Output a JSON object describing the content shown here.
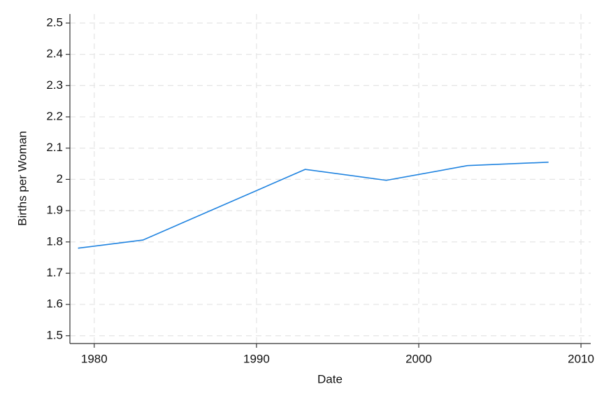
{
  "chart_data": {
    "type": "line",
    "x_label": "Date",
    "y_label": "Births per Woman",
    "x": [
      1979,
      1983,
      1993,
      1998,
      2003,
      2008
    ],
    "series": [
      {
        "name": "Births per Woman",
        "color": "#1f83e0",
        "values": [
          1.78,
          1.806,
          2.032,
          1.997,
          2.044,
          2.055
        ]
      }
    ],
    "xlim": [
      1978.5,
      2010.6
    ],
    "ylim": [
      1.475,
      2.529
    ],
    "xticks": [
      1980,
      1990,
      2000,
      2010
    ],
    "yticks": [
      1.5,
      1.6,
      1.7,
      1.8,
      1.9,
      2,
      2.1,
      2.2,
      2.3,
      2.4,
      2.5
    ],
    "grid": true
  }
}
